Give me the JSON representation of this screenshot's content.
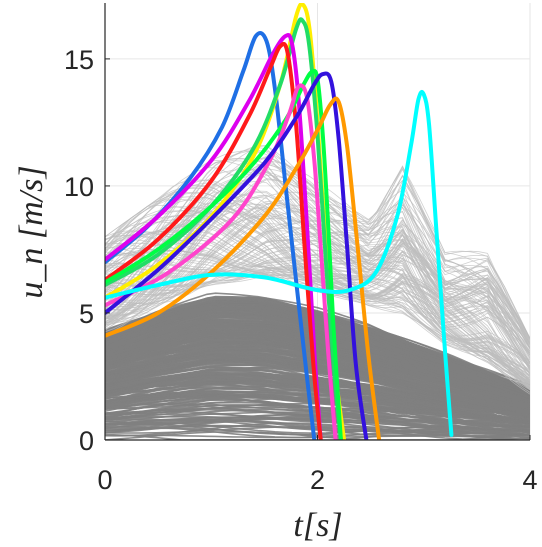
{
  "chart_data": {
    "type": "line",
    "title": "",
    "xlabel": "t[s]",
    "ylabel": "u_n [m/s]",
    "xlim": [
      0,
      4
    ],
    "ylim": [
      0,
      17.2
    ],
    "xticks": [
      0,
      2,
      4
    ],
    "yticks": [
      0,
      5,
      10,
      15
    ],
    "grid": true,
    "background_ensemble": {
      "description_color": "#808080",
      "note": "hundreds of thin gray trajectories; dense gray band below about 6 m/s decaying toward 1 m/s at t = 4 s",
      "envelope_top": [
        [
          0,
          8.0
        ],
        [
          0.5,
          9.5
        ],
        [
          1.0,
          11.2
        ],
        [
          1.5,
          11.8
        ],
        [
          2.0,
          10.4
        ],
        [
          2.5,
          9.2
        ],
        [
          2.8,
          11.3
        ],
        [
          3.2,
          7.5
        ],
        [
          3.6,
          7.4
        ],
        [
          4.0,
          4.0
        ]
      ],
      "dense_band_top": [
        [
          0,
          4.2
        ],
        [
          0.5,
          5.0
        ],
        [
          1.0,
          5.6
        ],
        [
          1.5,
          5.5
        ],
        [
          2.0,
          5.0
        ],
        [
          2.5,
          4.4
        ],
        [
          3.0,
          3.6
        ],
        [
          3.5,
          2.8
        ],
        [
          4.0,
          2.0
        ]
      ]
    },
    "series": [
      {
        "color": "#1f6fe5",
        "x": [
          0,
          0.4,
          0.8,
          1.1,
          1.3,
          1.42,
          1.52,
          1.6,
          1.7,
          1.8,
          1.9,
          1.97
        ],
        "y": [
          7.0,
          8.4,
          10.3,
          12.3,
          14.5,
          15.9,
          15.7,
          13.8,
          10.0,
          6.2,
          2.5,
          0.0
        ]
      },
      {
        "color": "#ffee00",
        "x": [
          0,
          0.5,
          1.0,
          1.4,
          1.65,
          1.8,
          1.87,
          1.93,
          2.0,
          2.08,
          2.16,
          2.25
        ],
        "y": [
          5.6,
          6.9,
          8.8,
          11.2,
          14.0,
          16.7,
          17.1,
          16.0,
          12.5,
          7.5,
          3.0,
          0.0
        ]
      },
      {
        "color": "#22dd66",
        "x": [
          0,
          0.5,
          1.0,
          1.4,
          1.65,
          1.8,
          1.86,
          1.92,
          2.0,
          2.08,
          2.16,
          2.22
        ],
        "y": [
          6.1,
          7.3,
          9.2,
          11.5,
          14.0,
          16.2,
          16.5,
          15.6,
          12.0,
          7.0,
          2.6,
          0.0
        ]
      },
      {
        "color": "#dd00ee",
        "x": [
          0,
          0.5,
          1.0,
          1.35,
          1.58,
          1.7,
          1.76,
          1.82,
          1.9,
          1.97,
          2.03
        ],
        "y": [
          7.1,
          8.8,
          11.0,
          13.3,
          15.2,
          15.9,
          15.6,
          13.5,
          8.5,
          3.5,
          0.0
        ]
      },
      {
        "color": "#ff1a1a",
        "x": [
          0,
          0.5,
          1.0,
          1.35,
          1.55,
          1.65,
          1.72,
          1.8,
          1.88,
          1.96,
          2.03
        ],
        "y": [
          6.3,
          7.9,
          10.2,
          12.7,
          14.6,
          15.5,
          15.2,
          12.3,
          7.5,
          3.0,
          0.0
        ]
      },
      {
        "color": "#00ff44",
        "x": [
          0,
          0.5,
          1.0,
          1.4,
          1.7,
          1.87,
          1.95,
          2.0,
          2.05,
          2.1,
          2.15,
          2.22
        ],
        "y": [
          6.2,
          7.5,
          9.2,
          10.9,
          12.6,
          14.0,
          14.5,
          14.2,
          12.0,
          8.5,
          4.5,
          0.0
        ]
      },
      {
        "color": "#ff44cc",
        "x": [
          0,
          0.6,
          1.2,
          1.55,
          1.73,
          1.82,
          1.9,
          1.97,
          2.04,
          2.1,
          2.17
        ],
        "y": [
          5.3,
          6.6,
          8.7,
          11.0,
          12.8,
          13.9,
          13.5,
          11.0,
          7.0,
          3.5,
          0.0
        ]
      },
      {
        "color": "#3311dd",
        "x": [
          0,
          0.5,
          1.0,
          1.5,
          1.8,
          1.97,
          2.05,
          2.13,
          2.2,
          2.28,
          2.36,
          2.46
        ],
        "y": [
          5.0,
          6.7,
          8.7,
          10.9,
          12.7,
          14.0,
          14.4,
          14.1,
          11.8,
          7.5,
          3.0,
          0.0
        ]
      },
      {
        "color": "#ff9900",
        "x": [
          0,
          0.5,
          1.0,
          1.5,
          1.8,
          2.0,
          2.12,
          2.2,
          2.28,
          2.38,
          2.48,
          2.58
        ],
        "y": [
          4.1,
          5.0,
          6.6,
          8.8,
          10.7,
          12.2,
          13.2,
          13.3,
          11.5,
          7.5,
          3.3,
          0.0
        ]
      },
      {
        "color": "#00ffff",
        "x": [
          0,
          0.5,
          1.0,
          1.5,
          2.0,
          2.3,
          2.55,
          2.75,
          2.88,
          2.95,
          3.0,
          3.05,
          3.12,
          3.2,
          3.26
        ],
        "y": [
          5.6,
          6.1,
          6.5,
          6.4,
          5.9,
          5.9,
          6.6,
          8.8,
          11.6,
          13.4,
          13.6,
          12.4,
          8.2,
          3.5,
          0.2
        ]
      }
    ]
  }
}
